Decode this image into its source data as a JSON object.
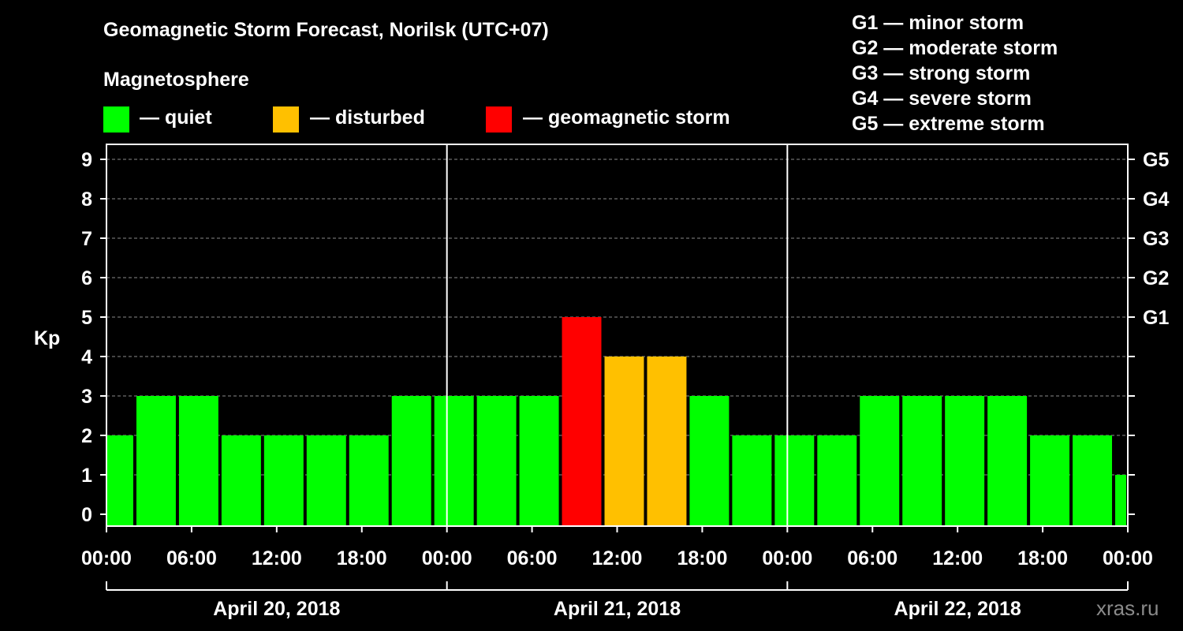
{
  "header": {
    "title": "Geomagnetic Storm Forecast, Norilsk (UTC+07)",
    "magnetosphere_label": "Magnetosphere"
  },
  "legend": {
    "items": [
      {
        "label": "— quiet",
        "color": "#00ff00"
      },
      {
        "label": "— disturbed",
        "color": "#ffc000"
      },
      {
        "label": "— geomagnetic storm",
        "color": "#ff0000"
      }
    ]
  },
  "storm_scale": [
    "G1 — minor storm",
    "G2 — moderate storm",
    "G3 — strong storm",
    "G4 — severe storm",
    "G5 — extreme storm"
  ],
  "watermark": "xras.ru",
  "chart_data": {
    "type": "bar",
    "title": "Geomagnetic Storm Forecast, Norilsk (UTC+07)",
    "ylabel": "Kp",
    "ylim": [
      0,
      9
    ],
    "yticks": [
      "0",
      "1",
      "2",
      "3",
      "4",
      "5",
      "6",
      "7",
      "8",
      "9"
    ],
    "right_ticks": [
      {
        "kp": 5,
        "label": "G1"
      },
      {
        "kp": 6,
        "label": "G2"
      },
      {
        "kp": 7,
        "label": "G3"
      },
      {
        "kp": 8,
        "label": "G4"
      },
      {
        "kp": 9,
        "label": "G5"
      }
    ],
    "x_ticks": [
      "00:00",
      "06:00",
      "12:00",
      "18:00",
      "00:00",
      "06:00",
      "12:00",
      "18:00",
      "00:00",
      "06:00",
      "12:00",
      "18:00",
      "00:00"
    ],
    "days": [
      "April 20, 2018",
      "April 21, 2018",
      "April 22, 2018"
    ],
    "bar_interval_hours": 3,
    "first_bar_start_hour": -1,
    "span_hours": 72,
    "values": [
      2,
      3,
      3,
      2,
      2,
      2,
      2,
      3,
      3,
      3,
      3,
      5,
      4,
      4,
      3,
      2,
      2,
      2,
      3,
      3,
      3,
      3,
      2,
      2,
      1
    ],
    "colors": {
      "quiet": "#00ff00",
      "disturbed": "#ffc000",
      "storm": "#ff0000"
    },
    "thresholds": {
      "disturbed": 4,
      "storm": 5
    }
  }
}
